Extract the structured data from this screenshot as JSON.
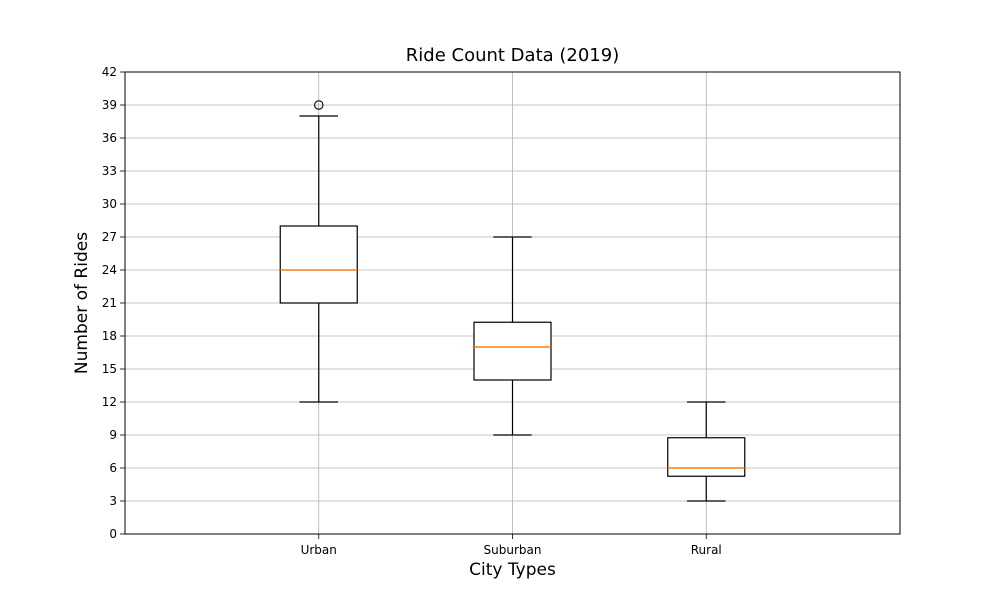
{
  "chart_data": {
    "type": "boxplot",
    "title": "Ride Count Data (2019)",
    "xlabel": "City Types",
    "ylabel": "Number of Rides",
    "ylim": [
      0,
      42
    ],
    "yticks": [
      0,
      3,
      6,
      9,
      12,
      15,
      18,
      21,
      24,
      27,
      30,
      33,
      36,
      39,
      42
    ],
    "grid": true,
    "categories": [
      "Urban",
      "Suburban",
      "Rural"
    ],
    "boxes": [
      {
        "category": "Urban",
        "whisker_low": 12,
        "q1": 21,
        "median": 24,
        "q3": 28,
        "whisker_high": 38,
        "outliers": [
          39
        ]
      },
      {
        "category": "Suburban",
        "whisker_low": 9,
        "q1": 14,
        "median": 17,
        "q3": 19.25,
        "whisker_high": 27,
        "outliers": []
      },
      {
        "category": "Rural",
        "whisker_low": 3,
        "q1": 5.25,
        "median": 6,
        "q3": 8.75,
        "whisker_high": 12,
        "outliers": []
      }
    ],
    "colors": {
      "box": "#000000",
      "median": "#ff7f0e",
      "grid": "#b0b0b0"
    }
  }
}
